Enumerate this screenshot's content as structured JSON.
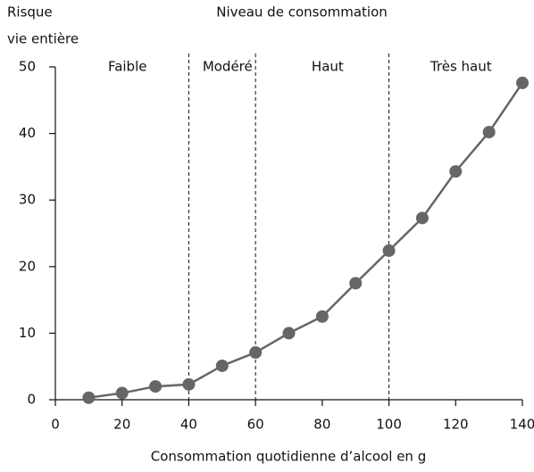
{
  "chart_data": {
    "type": "line",
    "ylabel": [
      "Risque",
      "vie entière"
    ],
    "annotation": "Niveau de consommation",
    "xlabel": "Consommation quotidienne d’alcool en g",
    "x": [
      10,
      20,
      30,
      40,
      50,
      60,
      70,
      80,
      90,
      100,
      110,
      120,
      130,
      140
    ],
    "series": [
      {
        "color": "#666666",
        "values": [
          0.3,
          1.0,
          2.0,
          2.3,
          5.1,
          7.1,
          10.0,
          12.5,
          17.5,
          22.4,
          27.3,
          34.3,
          40.2,
          47.6
        ]
      }
    ],
    "xlim": [
      0,
      140
    ],
    "xticks": [
      0,
      20,
      40,
      60,
      80,
      100,
      120,
      140
    ],
    "ylim": [
      0,
      50
    ],
    "yticks": [
      0,
      10,
      20,
      30,
      40,
      50
    ],
    "zone_boundaries": [
      40,
      60,
      100
    ],
    "zone_labels": [
      "Faible",
      "Modéré",
      "Haut",
      "Très haut"
    ]
  }
}
